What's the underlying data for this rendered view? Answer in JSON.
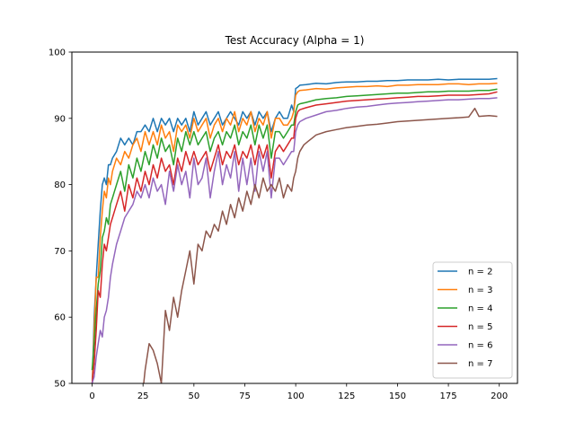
{
  "chart_data": {
    "type": "line",
    "title": "Test Accuracy (Alpha = 1)",
    "xlabel": "",
    "ylabel": "",
    "xlim": [
      -9.95,
      208.95
    ],
    "ylim": [
      50,
      100
    ],
    "xticks": [
      0,
      25,
      50,
      75,
      100,
      125,
      150,
      175,
      200
    ],
    "yticks": [
      50,
      60,
      70,
      80,
      90,
      100
    ],
    "grid": false,
    "legend_position": "lower-right",
    "series": [
      {
        "name": "n = 2",
        "color": "#1f77b4",
        "x": [
          0,
          1,
          2,
          3,
          4,
          5,
          6,
          7,
          8,
          9,
          10,
          12,
          14,
          16,
          18,
          20,
          22,
          24,
          26,
          28,
          30,
          32,
          34,
          36,
          38,
          40,
          42,
          44,
          46,
          48,
          50,
          52,
          54,
          56,
          58,
          60,
          62,
          64,
          66,
          68,
          70,
          72,
          74,
          76,
          78,
          80,
          82,
          84,
          86,
          88,
          90,
          92,
          94,
          96,
          98,
          99,
          100,
          101,
          102,
          105,
          110,
          115,
          120,
          125,
          130,
          135,
          140,
          145,
          150,
          155,
          160,
          165,
          170,
          175,
          180,
          185,
          190,
          195,
          199
        ],
        "y": [
          49,
          60,
          66,
          71,
          76,
          80,
          81,
          80,
          83,
          83,
          84,
          85,
          87,
          86,
          87,
          86,
          88,
          88,
          89,
          88,
          90,
          88,
          90,
          89,
          90,
          88,
          90,
          89,
          90,
          88,
          91,
          89,
          90,
          91,
          89,
          90,
          91,
          89,
          90,
          91,
          90,
          89,
          91,
          90,
          91,
          89,
          91,
          90,
          91,
          88,
          90,
          91,
          90,
          90,
          92,
          91,
          94.5,
          94.7,
          95,
          95.1,
          95.3,
          95.2,
          95.4,
          95.5,
          95.5,
          95.6,
          95.6,
          95.7,
          95.7,
          95.8,
          95.8,
          95.8,
          95.9,
          95.8,
          95.9,
          95.9,
          95.9,
          95.9,
          96
        ]
      },
      {
        "name": "n = 3",
        "color": "#ff7f0e",
        "x": [
          0,
          1,
          2,
          3,
          4,
          5,
          6,
          7,
          8,
          9,
          10,
          12,
          14,
          16,
          18,
          20,
          22,
          24,
          26,
          28,
          30,
          32,
          34,
          36,
          38,
          40,
          42,
          44,
          46,
          48,
          50,
          52,
          54,
          56,
          58,
          60,
          62,
          64,
          66,
          68,
          70,
          72,
          74,
          76,
          78,
          80,
          82,
          84,
          86,
          88,
          90,
          92,
          94,
          96,
          98,
          99,
          100,
          101,
          102,
          105,
          110,
          115,
          120,
          125,
          130,
          135,
          140,
          145,
          150,
          155,
          160,
          165,
          170,
          175,
          180,
          185,
          190,
          195,
          199
        ],
        "y": [
          49,
          58,
          66,
          66,
          72,
          76,
          79,
          78,
          81,
          80,
          82,
          84,
          83,
          85,
          84,
          86,
          87,
          85,
          88,
          86,
          88,
          86,
          89,
          87,
          88,
          85,
          89,
          88,
          89,
          87,
          90,
          88,
          89,
          90,
          87,
          89,
          90,
          88,
          90,
          89,
          91,
          88,
          90,
          89,
          91,
          88,
          90,
          89,
          91,
          87,
          90,
          90,
          89,
          89,
          90,
          91,
          93.5,
          94,
          94.2,
          94.3,
          94.5,
          94.4,
          94.6,
          94.7,
          94.8,
          94.8,
          94.9,
          94.8,
          95,
          95,
          95.1,
          95.1,
          95.1,
          95.2,
          95.2,
          95.1,
          95.2,
          95.2,
          95.3
        ]
      },
      {
        "name": "n = 4",
        "color": "#2ca02c",
        "x": [
          0,
          1,
          2,
          3,
          4,
          5,
          6,
          7,
          8,
          9,
          10,
          12,
          14,
          16,
          18,
          20,
          22,
          24,
          26,
          28,
          30,
          32,
          34,
          36,
          38,
          40,
          42,
          44,
          46,
          48,
          50,
          52,
          54,
          56,
          58,
          60,
          62,
          64,
          66,
          68,
          70,
          72,
          74,
          76,
          78,
          80,
          82,
          84,
          86,
          88,
          90,
          92,
          94,
          96,
          98,
          99,
          100,
          101,
          102,
          105,
          110,
          115,
          120,
          125,
          130,
          135,
          140,
          145,
          150,
          155,
          160,
          165,
          170,
          175,
          180,
          185,
          190,
          195,
          199
        ],
        "y": [
          52,
          56,
          61,
          65,
          67,
          72,
          73,
          75,
          74,
          77,
          78,
          80,
          82,
          79,
          83,
          81,
          84,
          82,
          85,
          83,
          86,
          84,
          87,
          85,
          86,
          83,
          87,
          85,
          88,
          86,
          88,
          86,
          87,
          88,
          85,
          87,
          88,
          86,
          88,
          87,
          89,
          86,
          88,
          87,
          89,
          86,
          89,
          87,
          89,
          84,
          88,
          88,
          87,
          88,
          89,
          89,
          91,
          92,
          92.2,
          92.4,
          92.8,
          93,
          93.1,
          93.3,
          93.4,
          93.5,
          93.6,
          93.7,
          93.8,
          93.8,
          93.9,
          94,
          94,
          94.1,
          94.1,
          94.1,
          94.2,
          94.2,
          94.4
        ]
      },
      {
        "name": "n = 5",
        "color": "#d62728",
        "x": [
          0,
          1,
          2,
          3,
          4,
          5,
          6,
          7,
          8,
          9,
          10,
          12,
          14,
          16,
          18,
          20,
          22,
          24,
          26,
          28,
          30,
          32,
          34,
          36,
          38,
          40,
          42,
          44,
          46,
          48,
          50,
          52,
          54,
          56,
          58,
          60,
          62,
          64,
          66,
          68,
          70,
          72,
          74,
          76,
          78,
          80,
          82,
          84,
          86,
          88,
          90,
          92,
          94,
          96,
          98,
          99,
          100,
          101,
          102,
          105,
          110,
          115,
          120,
          125,
          130,
          135,
          140,
          145,
          150,
          155,
          160,
          165,
          170,
          175,
          180,
          185,
          190,
          195,
          199
        ],
        "y": [
          50,
          53,
          58,
          64,
          63,
          68,
          71,
          70,
          72,
          74,
          75,
          77,
          79,
          76,
          80,
          78,
          81,
          79,
          82,
          80,
          83,
          81,
          84,
          82,
          83,
          80,
          84,
          82,
          85,
          83,
          85,
          83,
          84,
          85,
          82,
          84,
          86,
          83,
          85,
          84,
          86,
          83,
          85,
          84,
          86,
          83,
          86,
          84,
          86,
          81,
          85,
          86,
          85,
          86,
          87,
          87,
          90,
          91,
          91.3,
          91.6,
          92,
          92.2,
          92.4,
          92.6,
          92.7,
          92.8,
          92.9,
          93,
          93.1,
          93.2,
          93.3,
          93.3,
          93.4,
          93.5,
          93.5,
          93.5,
          93.6,
          93.7,
          94
        ]
      },
      {
        "name": "n = 6",
        "color": "#9467bd",
        "x": [
          0,
          1,
          2,
          3,
          4,
          5,
          6,
          7,
          8,
          9,
          10,
          12,
          14,
          16,
          18,
          20,
          22,
          24,
          26,
          28,
          30,
          32,
          34,
          36,
          38,
          40,
          42,
          44,
          46,
          48,
          50,
          52,
          54,
          56,
          58,
          60,
          62,
          64,
          66,
          68,
          70,
          72,
          74,
          76,
          78,
          80,
          82,
          84,
          86,
          88,
          90,
          92,
          94,
          96,
          98,
          99,
          100,
          101,
          102,
          105,
          110,
          115,
          120,
          125,
          130,
          135,
          140,
          145,
          150,
          155,
          160,
          165,
          170,
          175,
          180,
          185,
          190,
          195,
          199
        ],
        "y": [
          50,
          51,
          54,
          56,
          58,
          57,
          60,
          61,
          63,
          66,
          68,
          71,
          73,
          75,
          76,
          77,
          79,
          78,
          80,
          78,
          81,
          79,
          80,
          77,
          82,
          79,
          83,
          80,
          82,
          78,
          84,
          80,
          81,
          84,
          78,
          82,
          85,
          80,
          83,
          81,
          85,
          79,
          84,
          80,
          84,
          79,
          85,
          82,
          85,
          78,
          84,
          84,
          83,
          84,
          85,
          85,
          88,
          89,
          89.5,
          90,
          90.5,
          91,
          91.2,
          91.5,
          91.7,
          91.8,
          92,
          92.2,
          92.3,
          92.4,
          92.5,
          92.6,
          92.7,
          92.8,
          92.8,
          92.9,
          93,
          93,
          93.1
        ]
      },
      {
        "name": "n = 7",
        "color": "#8c564b",
        "x": [
          25,
          26,
          28,
          30,
          32,
          34,
          36,
          38,
          40,
          42,
          44,
          46,
          48,
          50,
          52,
          54,
          56,
          58,
          60,
          62,
          64,
          66,
          68,
          70,
          72,
          74,
          76,
          78,
          80,
          82,
          84,
          86,
          88,
          90,
          92,
          94,
          96,
          98,
          99,
          100,
          101,
          102,
          104,
          106,
          108,
          110,
          115,
          120,
          125,
          130,
          135,
          140,
          145,
          150,
          155,
          160,
          165,
          170,
          175,
          180,
          185,
          188,
          190,
          195,
          199
        ],
        "y": [
          49,
          52,
          56,
          55,
          53,
          50,
          61,
          58,
          63,
          60,
          64,
          67,
          70,
          65,
          71,
          70,
          73,
          72,
          74,
          73,
          76,
          74,
          77,
          75,
          78,
          76,
          79,
          77,
          80,
          78,
          81,
          79,
          80,
          79,
          81,
          78,
          80,
          79,
          81,
          82,
          84,
          85,
          86,
          86.5,
          87,
          87.5,
          88,
          88.3,
          88.6,
          88.8,
          89,
          89.1,
          89.3,
          89.5,
          89.6,
          89.7,
          89.8,
          89.9,
          90,
          90.1,
          90.2,
          91.5,
          90.3,
          90.4,
          90.3
        ]
      }
    ]
  }
}
